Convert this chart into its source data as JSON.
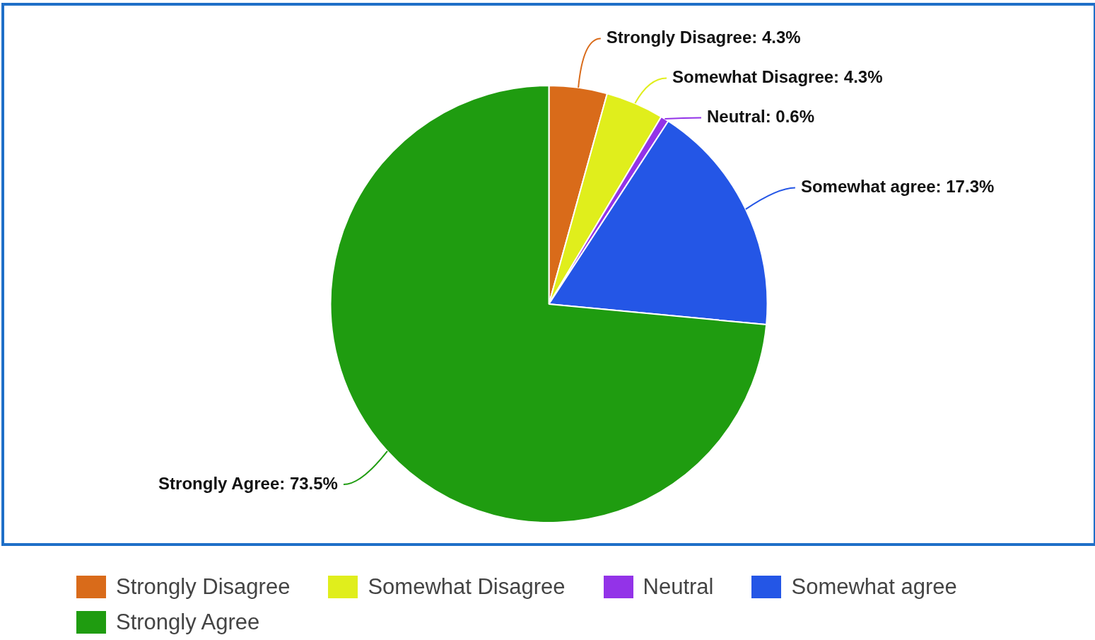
{
  "chart_data": {
    "type": "pie",
    "categories": [
      "Strongly Disagree",
      "Somewhat Disagree",
      "Neutral",
      "Somewhat agree",
      "Strongly Agree"
    ],
    "values": [
      4.3,
      4.3,
      0.6,
      17.3,
      73.5
    ],
    "colors": [
      "#d96b1a",
      "#e0ee1c",
      "#9333e8",
      "#2456e6",
      "#1f9c10"
    ],
    "value_labels": [
      "Strongly Disagree: 4.3%",
      "Somewhat Disagree: 4.3%",
      "Neutral: 0.6%",
      "Somewhat agree: 17.3%",
      "Strongly Agree: 73.5%"
    ],
    "legend": "bottom"
  }
}
